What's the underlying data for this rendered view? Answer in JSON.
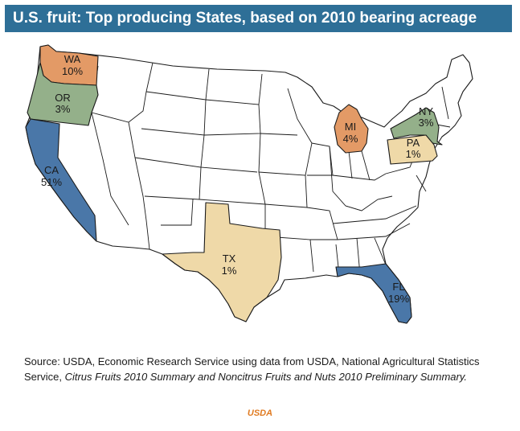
{
  "title": "U.S. fruit:  Top producing States, based on 2010 bearing acreage",
  "colors": {
    "title_bg": "#2e6f97",
    "high": "#4a77a8",
    "mid": "#e39a66",
    "low_green": "#94b08a",
    "low_tan": "#efd9a8",
    "credit": "#e07a20"
  },
  "states": {
    "wa": {
      "abbr": "WA",
      "value": "10%"
    },
    "or": {
      "abbr": "OR",
      "value": "3%"
    },
    "ca": {
      "abbr": "CA",
      "value": "51%"
    },
    "tx": {
      "abbr": "TX",
      "value": "1%"
    },
    "mi": {
      "abbr": "MI",
      "value": "4%"
    },
    "ny": {
      "abbr": "NY",
      "value": "3%"
    },
    "pa": {
      "abbr": "PA",
      "value": "1%"
    },
    "fl": {
      "abbr": "FL",
      "value": "19%"
    }
  },
  "source": {
    "plain": "Source: USDA, Economic Research Service using data from USDA, National Agricultural Statistics Service, ",
    "italic": "Citrus Fruits 2010 Summary and Noncitrus Fruits and Nuts 2010 Preliminary Summary."
  },
  "credit": "USDA"
}
